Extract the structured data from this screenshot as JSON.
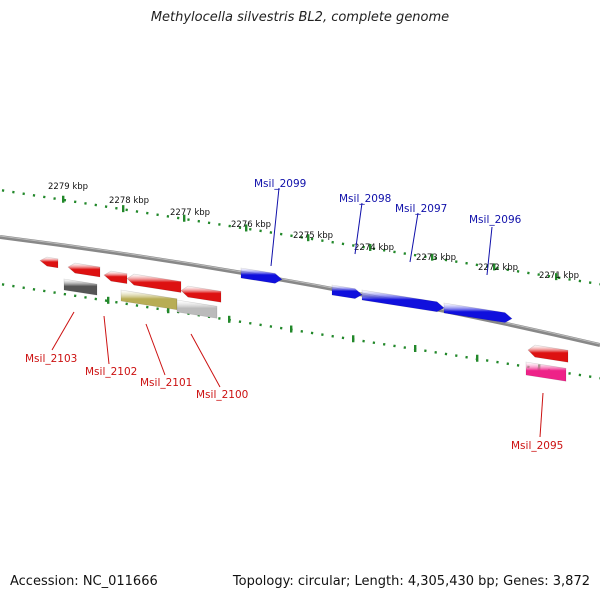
{
  "title": "Methylocella silvestris BL2, complete genome",
  "footer": {
    "accession": "Accession: NC_011666",
    "stats": "Topology: circular; Length: 4,305,430 bp; Genes: 3,872"
  },
  "colors": {
    "backbone": "#777777",
    "tick": "#22882a",
    "forward_gene": "#1010dd",
    "reverse_gene": "#dd1111",
    "rna_gene": "#ee2288",
    "dark_gene": "#555555",
    "olive_gene": "#b8ad55",
    "light_gene": "#bbbbbb",
    "forward_label": "#1010aa",
    "reverse_label": "#cc1111"
  },
  "kbp_ticks": [
    {
      "label": "2279 kbp"
    },
    {
      "label": "2278 kbp"
    },
    {
      "label": "2277 kbp"
    },
    {
      "label": "2276 kbp"
    },
    {
      "label": "2275 kbp"
    },
    {
      "label": "2274 kbp"
    },
    {
      "label": "2273 kbp"
    },
    {
      "label": "2272 kbp"
    },
    {
      "label": "2271 kbp"
    }
  ],
  "genes": [
    {
      "id": "msil-2099",
      "label": "Msil_2099",
      "strand": "forward"
    },
    {
      "id": "msil-2098",
      "label": "Msil_2098",
      "strand": "forward"
    },
    {
      "id": "msil-2097",
      "label": "Msil_2097",
      "strand": "forward"
    },
    {
      "id": "msil-2096",
      "label": "Msil_2096",
      "strand": "forward"
    },
    {
      "id": "msil-2103",
      "label": "Msil_2103",
      "strand": "reverse"
    },
    {
      "id": "msil-2102",
      "label": "Msil_2102",
      "strand": "reverse"
    },
    {
      "id": "msil-2101",
      "label": "Msil_2101",
      "strand": "reverse"
    },
    {
      "id": "msil-2100",
      "label": "Msil_2100",
      "strand": "reverse"
    },
    {
      "id": "msil-2095",
      "label": "Msil_2095",
      "strand": "reverse"
    }
  ]
}
